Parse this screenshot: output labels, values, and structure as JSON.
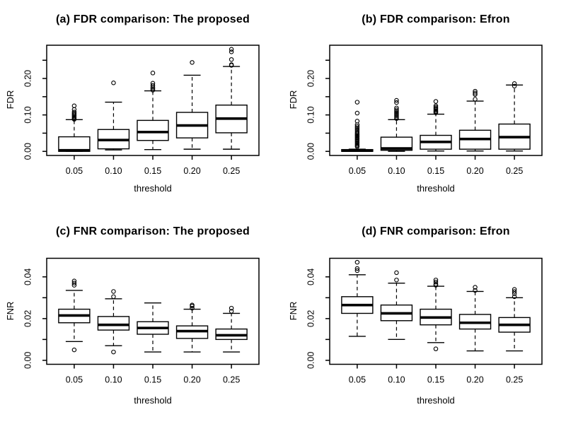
{
  "figure": {
    "background": "#ffffff",
    "ink": "#000000",
    "grid": "2x2"
  },
  "chart_data": [
    {
      "id": "a",
      "type": "boxplot",
      "title": "(a) FDR comparison: The proposed",
      "xlabel": "threshold",
      "ylabel": "FDR",
      "categories": [
        "0.05",
        "0.10",
        "0.15",
        "0.20",
        "0.25"
      ],
      "ylim": [
        -0.0112,
        0.2912
      ],
      "yticks": {
        "values": [
          0,
          0.1,
          0.2
        ],
        "labels": [
          "0.00",
          "0.10",
          "0.20"
        ],
        "minor": [
          0.05,
          0.15,
          0.25
        ]
      },
      "boxes": [
        {
          "low": 0.0,
          "q1": 0.0,
          "med": 0.003,
          "q3": 0.04,
          "high": 0.087,
          "outliers": [
            0.088,
            0.09,
            0.092,
            0.095,
            0.098,
            0.101,
            0.104,
            0.108,
            0.115,
            0.125
          ]
        },
        {
          "low": 0.004,
          "q1": 0.007,
          "med": 0.031,
          "q3": 0.06,
          "high": 0.135,
          "outliers": [
            0.188
          ]
        },
        {
          "low": 0.005,
          "q1": 0.03,
          "med": 0.053,
          "q3": 0.085,
          "high": 0.166,
          "outliers": [
            0.168,
            0.172,
            0.176,
            0.181,
            0.187,
            0.215
          ]
        },
        {
          "low": 0.006,
          "q1": 0.037,
          "med": 0.071,
          "q3": 0.107,
          "high": 0.209,
          "outliers": [
            0.244
          ]
        },
        {
          "low": 0.006,
          "q1": 0.051,
          "med": 0.09,
          "q3": 0.127,
          "high": 0.233,
          "outliers": [
            0.236,
            0.238,
            0.252,
            0.273,
            0.28
          ]
        }
      ]
    },
    {
      "id": "b",
      "type": "boxplot",
      "title": "(b) FDR comparison: Efron",
      "xlabel": "threshold",
      "ylabel": "FDR",
      "categories": [
        "0.05",
        "0.10",
        "0.15",
        "0.20",
        "0.25"
      ],
      "ylim": [
        -0.0112,
        0.2912
      ],
      "yticks": {
        "values": [
          0,
          0.1,
          0.2
        ],
        "labels": [
          "0.00",
          "0.10",
          "0.20"
        ],
        "minor": [
          0.05,
          0.15,
          0.25
        ]
      },
      "boxes": [
        {
          "low": 0.0,
          "q1": 0.0,
          "med": 0.002,
          "q3": 0.005,
          "high": 0.006,
          "outliers": [
            0.013,
            0.016,
            0.019,
            0.022,
            0.025,
            0.028,
            0.031,
            0.034,
            0.037,
            0.04,
            0.043,
            0.046,
            0.049,
            0.052,
            0.056,
            0.06,
            0.064,
            0.068,
            0.073,
            0.083,
            0.105,
            0.135
          ]
        },
        {
          "low": 0.0,
          "q1": 0.003,
          "med": 0.008,
          "q3": 0.039,
          "high": 0.087,
          "outliers": [
            0.09,
            0.094,
            0.098,
            0.102,
            0.106,
            0.11,
            0.114,
            0.119,
            0.134,
            0.14
          ]
        },
        {
          "low": 0.001,
          "q1": 0.006,
          "med": 0.026,
          "q3": 0.044,
          "high": 0.102,
          "outliers": [
            0.106,
            0.109,
            0.112,
            0.115,
            0.118,
            0.121,
            0.125,
            0.137
          ]
        },
        {
          "low": 0.001,
          "q1": 0.006,
          "med": 0.034,
          "q3": 0.058,
          "high": 0.138,
          "outliers": [
            0.143,
            0.156,
            0.16,
            0.165
          ]
        },
        {
          "low": 0.001,
          "q1": 0.006,
          "med": 0.039,
          "q3": 0.075,
          "high": 0.182,
          "outliers": [
            0.179,
            0.186
          ]
        }
      ]
    },
    {
      "id": "c",
      "type": "boxplot",
      "title": "(c) FNR comparison: The proposed",
      "xlabel": "threshold",
      "ylabel": "FNR",
      "categories": [
        "0.05",
        "0.10",
        "0.15",
        "0.20",
        "0.25"
      ],
      "ylim": [
        -0.0019,
        0.0489
      ],
      "yticks": {
        "values": [
          0,
          0.02,
          0.04
        ],
        "labels": [
          "0.00",
          "0.02",
          "0.04"
        ],
        "minor": [
          0.01,
          0.03
        ]
      },
      "boxes": [
        {
          "low": 0.009,
          "q1": 0.018,
          "med": 0.0215,
          "q3": 0.0245,
          "high": 0.0335,
          "outliers": [
            0.005,
            0.036,
            0.037,
            0.038
          ]
        },
        {
          "low": 0.007,
          "q1": 0.0145,
          "med": 0.017,
          "q3": 0.021,
          "high": 0.0295,
          "outliers": [
            0.004,
            0.0305,
            0.033
          ]
        },
        {
          "low": 0.004,
          "q1": 0.0125,
          "med": 0.0155,
          "q3": 0.0185,
          "high": 0.0275,
          "outliers": []
        },
        {
          "low": 0.004,
          "q1": 0.0105,
          "med": 0.014,
          "q3": 0.0165,
          "high": 0.0245,
          "outliers": [
            0.025,
            0.026,
            0.0265
          ]
        },
        {
          "low": 0.004,
          "q1": 0.01,
          "med": 0.012,
          "q3": 0.015,
          "high": 0.0225,
          "outliers": [
            0.0235,
            0.025
          ]
        }
      ]
    },
    {
      "id": "d",
      "type": "boxplot",
      "title": "(d) FNR comparison: Efron",
      "xlabel": "threshold",
      "ylabel": "FNR",
      "categories": [
        "0.05",
        "0.10",
        "0.15",
        "0.20",
        "0.25"
      ],
      "ylim": [
        -0.0019,
        0.0489
      ],
      "yticks": {
        "values": [
          0,
          0.02,
          0.04
        ],
        "labels": [
          "0.00",
          "0.02",
          "0.04"
        ],
        "minor": [
          0.01,
          0.03
        ]
      },
      "boxes": [
        {
          "low": 0.0115,
          "q1": 0.0225,
          "med": 0.0265,
          "q3": 0.0305,
          "high": 0.041,
          "outliers": [
            0.043,
            0.044,
            0.047
          ]
        },
        {
          "low": 0.01,
          "q1": 0.019,
          "med": 0.0225,
          "q3": 0.0265,
          "high": 0.037,
          "outliers": [
            0.0385,
            0.042
          ]
        },
        {
          "low": 0.0085,
          "q1": 0.017,
          "med": 0.0205,
          "q3": 0.0245,
          "high": 0.0355,
          "outliers": [
            0.0055,
            0.036,
            0.0365,
            0.0375,
            0.0385
          ]
        },
        {
          "low": 0.0045,
          "q1": 0.015,
          "med": 0.018,
          "q3": 0.022,
          "high": 0.033,
          "outliers": [
            0.0335,
            0.035
          ]
        },
        {
          "low": 0.0045,
          "q1": 0.0135,
          "med": 0.017,
          "q3": 0.0205,
          "high": 0.03,
          "outliers": [
            0.0305,
            0.032,
            0.033,
            0.034
          ]
        }
      ]
    }
  ]
}
